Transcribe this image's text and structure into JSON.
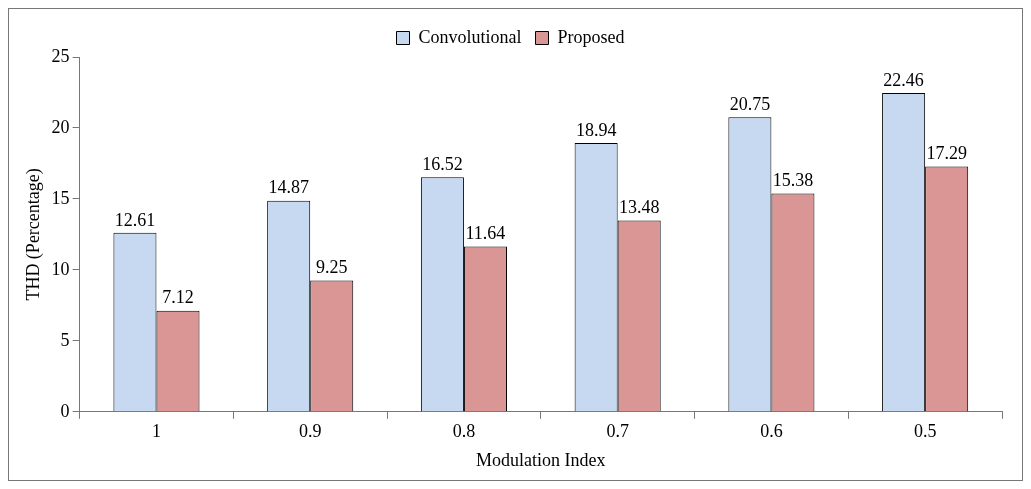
{
  "chart_data": {
    "type": "bar",
    "xlabel": "Modulation Index",
    "ylabel": "THD (Percentage)",
    "categories": [
      "1",
      "0.9",
      "0.8",
      "0.7",
      "0.6",
      "0.5"
    ],
    "series": [
      {
        "name": "Convolutional",
        "color": "#c6d9f1",
        "values": [
          12.61,
          14.87,
          16.52,
          18.94,
          20.75,
          22.46
        ]
      },
      {
        "name": "Proposed",
        "color": "#d99694",
        "values": [
          7.12,
          9.25,
          11.64,
          13.48,
          15.38,
          17.29
        ]
      }
    ],
    "ylim": [
      0,
      25
    ],
    "yticks": [
      0,
      5,
      10,
      15,
      20,
      25
    ],
    "grid": false,
    "legend": "top",
    "data_labels": true
  }
}
